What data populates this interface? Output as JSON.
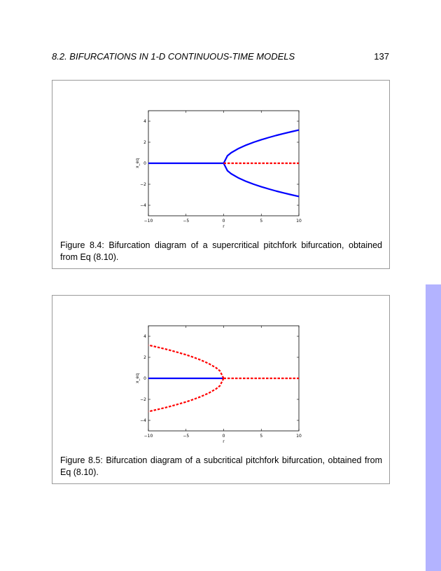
{
  "header": {
    "section_title": "8.2.  BIFURCATIONS IN 1-D CONTINUOUS-TIME MODELS",
    "page_number": "137"
  },
  "figures": [
    {
      "caption": "Figure 8.4: Bifurcation diagram of a supercritical pitchfork bifurcation, obtained from Eq (8.10)."
    },
    {
      "caption": "Figure 8.5: Bifurcation diagram of a subcritical pitchfork bifurcation, obtained from Eq (8.10)."
    }
  ],
  "colors": {
    "stable": "#0000ff",
    "unstable": "#ff0000",
    "side_tab": "#b3b3ff"
  },
  "chart_data": [
    {
      "type": "line",
      "xlabel": "r",
      "ylabel": "x_eq",
      "xlim": [
        -10,
        10
      ],
      "ylim": [
        -5,
        5
      ],
      "xticks": [
        "−10",
        "−5",
        "0",
        "5",
        "10"
      ],
      "yticks": [
        "4",
        "2",
        "0",
        "−2",
        "−4"
      ],
      "series": [
        {
          "style": "solid",
          "color": "#0000ff",
          "x": [
            -10,
            0
          ],
          "y": [
            0,
            0
          ]
        },
        {
          "style": "solid",
          "color": "#0000ff",
          "x": [
            0,
            0.5,
            1,
            2,
            3,
            4,
            5,
            6,
            7,
            8,
            9,
            10
          ],
          "y": [
            0,
            0.71,
            1,
            1.41,
            1.73,
            2,
            2.24,
            2.45,
            2.65,
            2.83,
            3,
            3.16
          ]
        },
        {
          "style": "solid",
          "color": "#0000ff",
          "x": [
            0,
            0.5,
            1,
            2,
            3,
            4,
            5,
            6,
            7,
            8,
            9,
            10
          ],
          "y": [
            0,
            -0.71,
            -1,
            -1.41,
            -1.73,
            -2,
            -2.24,
            -2.45,
            -2.65,
            -2.83,
            -3,
            -3.16
          ]
        },
        {
          "style": "dashed",
          "color": "#ff0000",
          "x": [
            0,
            10
          ],
          "y": [
            0,
            0
          ]
        }
      ]
    },
    {
      "type": "line",
      "xlabel": "r",
      "ylabel": "x_eq",
      "xlim": [
        -10,
        10
      ],
      "ylim": [
        -5,
        5
      ],
      "xticks": [
        "−10",
        "−5",
        "0",
        "5",
        "10"
      ],
      "yticks": [
        "4",
        "2",
        "0",
        "−2",
        "−4"
      ],
      "series": [
        {
          "style": "solid",
          "color": "#0000ff",
          "x": [
            -10,
            0
          ],
          "y": [
            0,
            0
          ]
        },
        {
          "style": "dashed",
          "color": "#ff0000",
          "x": [
            0,
            10
          ],
          "y": [
            0,
            0
          ]
        },
        {
          "style": "dashed",
          "color": "#ff0000",
          "x": [
            0,
            -0.5,
            -1,
            -2,
            -3,
            -4,
            -5,
            -6,
            -7,
            -8,
            -9,
            -10
          ],
          "y": [
            0,
            0.71,
            1,
            1.41,
            1.73,
            2,
            2.24,
            2.45,
            2.65,
            2.83,
            3,
            3.16
          ]
        },
        {
          "style": "dashed",
          "color": "#ff0000",
          "x": [
            0,
            -0.5,
            -1,
            -2,
            -3,
            -4,
            -5,
            -6,
            -7,
            -8,
            -9,
            -10
          ],
          "y": [
            0,
            -0.71,
            -1,
            -1.41,
            -1.73,
            -2,
            -2.24,
            -2.45,
            -2.65,
            -2.83,
            -3,
            -3.16
          ]
        }
      ]
    }
  ]
}
